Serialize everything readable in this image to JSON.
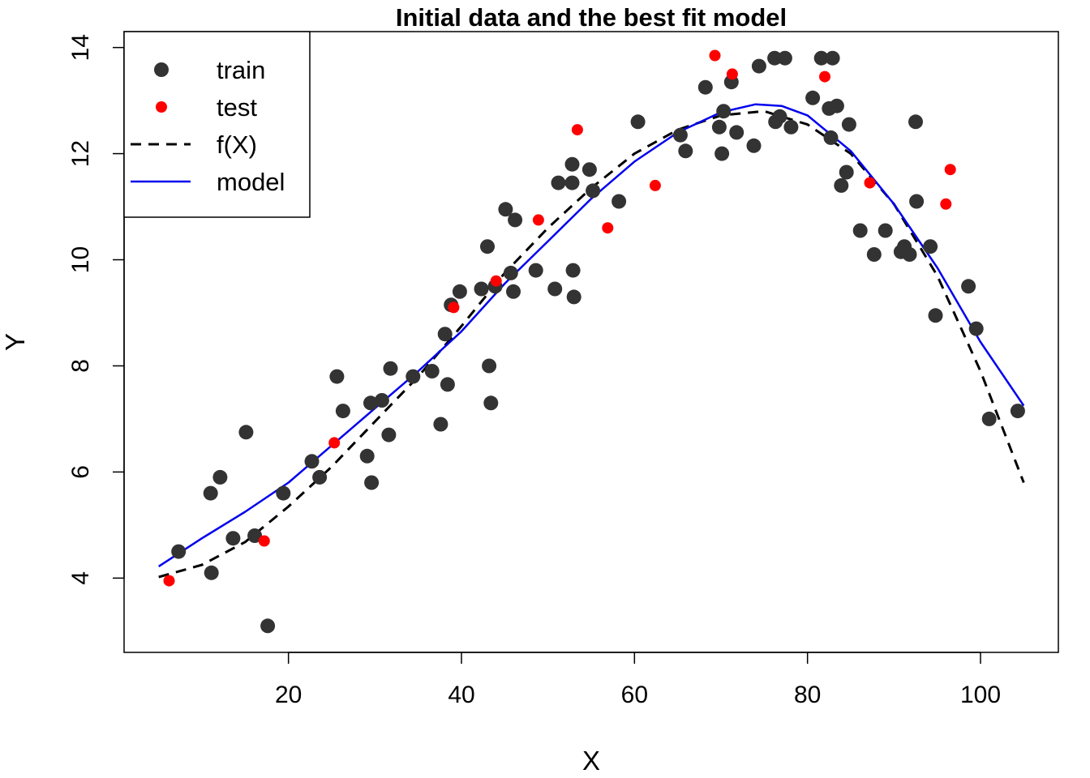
{
  "chart_data": {
    "type": "scatter",
    "title": "Initial data and the best fit model",
    "xlabel": "X",
    "ylabel": "Y",
    "xlim": [
      1,
      109
    ],
    "ylim": [
      2.6,
      14.3
    ],
    "xticks": [
      20,
      40,
      60,
      80,
      100
    ],
    "yticks": [
      4,
      6,
      8,
      10,
      12,
      14
    ],
    "grid": false,
    "legend": {
      "placement": "top-left",
      "entries": [
        {
          "label": "train",
          "kind": "point",
          "color": "#333333"
        },
        {
          "label": "test",
          "kind": "point",
          "color": "#ff0000"
        },
        {
          "label": "f(X)",
          "kind": "dashed-line",
          "color": "#000000"
        },
        {
          "label": "model",
          "kind": "line",
          "color": "#0000ee"
        }
      ]
    },
    "series": [
      {
        "name": "train",
        "kind": "points",
        "color": "#333333",
        "points": [
          [
            7.3,
            4.5
          ],
          [
            11.0,
            5.6
          ],
          [
            11.1,
            4.1
          ],
          [
            12.1,
            5.9
          ],
          [
            13.6,
            4.75
          ],
          [
            15.1,
            6.75
          ],
          [
            16.1,
            4.8
          ],
          [
            17.6,
            3.1
          ],
          [
            19.4,
            5.6
          ],
          [
            22.7,
            6.2
          ],
          [
            23.6,
            5.9
          ],
          [
            25.6,
            7.8
          ],
          [
            26.3,
            7.15
          ],
          [
            29.1,
            6.3
          ],
          [
            29.5,
            7.3
          ],
          [
            29.6,
            5.8
          ],
          [
            30.8,
            7.35
          ],
          [
            31.6,
            6.7
          ],
          [
            31.8,
            7.95
          ],
          [
            34.4,
            7.8
          ],
          [
            36.6,
            7.9
          ],
          [
            37.6,
            6.9
          ],
          [
            38.1,
            8.6
          ],
          [
            38.4,
            7.65
          ],
          [
            38.8,
            9.15
          ],
          [
            39.8,
            9.4
          ],
          [
            42.3,
            9.45
          ],
          [
            43.0,
            10.25
          ],
          [
            43.2,
            8.0
          ],
          [
            43.4,
            7.3
          ],
          [
            43.9,
            9.5
          ],
          [
            45.1,
            10.95
          ],
          [
            45.7,
            9.75
          ],
          [
            46.0,
            9.4
          ],
          [
            46.2,
            10.75
          ],
          [
            48.6,
            9.8
          ],
          [
            50.8,
            9.45
          ],
          [
            51.2,
            11.45
          ],
          [
            52.8,
            11.8
          ],
          [
            52.8,
            11.45
          ],
          [
            52.9,
            9.8
          ],
          [
            53.0,
            9.3
          ],
          [
            54.8,
            11.7
          ],
          [
            55.2,
            11.3
          ],
          [
            58.2,
            11.1
          ],
          [
            60.4,
            12.6
          ],
          [
            65.3,
            12.35
          ],
          [
            65.9,
            12.05
          ],
          [
            68.2,
            13.25
          ],
          [
            69.8,
            12.5
          ],
          [
            70.1,
            12.0
          ],
          [
            70.3,
            12.8
          ],
          [
            71.2,
            13.35
          ],
          [
            71.8,
            12.4
          ],
          [
            73.8,
            12.15
          ],
          [
            74.4,
            13.65
          ],
          [
            76.2,
            13.8
          ],
          [
            76.3,
            12.6
          ],
          [
            76.8,
            12.7
          ],
          [
            77.4,
            13.8
          ],
          [
            78.1,
            12.5
          ],
          [
            80.6,
            13.05
          ],
          [
            81.6,
            13.8
          ],
          [
            82.5,
            12.85
          ],
          [
            82.7,
            12.3
          ],
          [
            82.9,
            13.8
          ],
          [
            83.4,
            12.9
          ],
          [
            83.9,
            11.4
          ],
          [
            84.5,
            11.65
          ],
          [
            84.8,
            12.55
          ],
          [
            86.1,
            10.55
          ],
          [
            87.7,
            10.1
          ],
          [
            89.0,
            10.55
          ],
          [
            90.8,
            10.15
          ],
          [
            91.2,
            10.25
          ],
          [
            91.8,
            10.1
          ],
          [
            92.5,
            12.6
          ],
          [
            92.6,
            11.1
          ],
          [
            94.2,
            10.25
          ],
          [
            94.8,
            8.95
          ],
          [
            98.6,
            9.5
          ],
          [
            99.5,
            8.7
          ],
          [
            101.0,
            7.0
          ],
          [
            104.3,
            7.15
          ]
        ]
      },
      {
        "name": "test",
        "kind": "points",
        "color": "#ff0000",
        "points": [
          [
            6.2,
            3.95
          ],
          [
            17.2,
            4.7
          ],
          [
            25.3,
            6.55
          ],
          [
            39.1,
            9.1
          ],
          [
            44.0,
            9.6
          ],
          [
            48.9,
            10.75
          ],
          [
            53.4,
            12.45
          ],
          [
            56.9,
            10.6
          ],
          [
            62.4,
            11.4
          ],
          [
            69.3,
            13.85
          ],
          [
            71.3,
            13.5
          ],
          [
            82.0,
            13.45
          ],
          [
            87.2,
            11.45
          ],
          [
            96.0,
            11.05
          ],
          [
            96.5,
            11.7
          ]
        ]
      },
      {
        "name": "f(X)",
        "kind": "dashed-line",
        "color": "#000000",
        "points": [
          [
            5,
            4.02
          ],
          [
            10,
            4.25
          ],
          [
            15,
            4.68
          ],
          [
            20,
            5.35
          ],
          [
            25,
            6.1
          ],
          [
            30,
            6.95
          ],
          [
            35,
            7.8
          ],
          [
            40,
            8.75
          ],
          [
            45,
            9.75
          ],
          [
            50,
            10.6
          ],
          [
            55,
            11.35
          ],
          [
            60,
            12.0
          ],
          [
            65,
            12.45
          ],
          [
            70,
            12.72
          ],
          [
            75,
            12.8
          ],
          [
            80,
            12.55
          ],
          [
            85,
            12.0
          ],
          [
            90,
            11.05
          ],
          [
            95,
            9.7
          ],
          [
            100,
            7.9
          ],
          [
            105,
            5.8
          ]
        ]
      },
      {
        "name": "model",
        "kind": "line",
        "color": "#0000ee",
        "points": [
          [
            5,
            4.22
          ],
          [
            10,
            4.75
          ],
          [
            15,
            5.25
          ],
          [
            20,
            5.8
          ],
          [
            25,
            6.5
          ],
          [
            30,
            7.2
          ],
          [
            35,
            7.9
          ],
          [
            40,
            8.65
          ],
          [
            45,
            9.55
          ],
          [
            50,
            10.35
          ],
          [
            55,
            11.15
          ],
          [
            60,
            11.85
          ],
          [
            65,
            12.4
          ],
          [
            70,
            12.78
          ],
          [
            74,
            12.93
          ],
          [
            77,
            12.9
          ],
          [
            80,
            12.72
          ],
          [
            85,
            12.05
          ],
          [
            90,
            11.05
          ],
          [
            95,
            9.85
          ],
          [
            100,
            8.45
          ],
          [
            105,
            7.25
          ]
        ]
      }
    ]
  }
}
